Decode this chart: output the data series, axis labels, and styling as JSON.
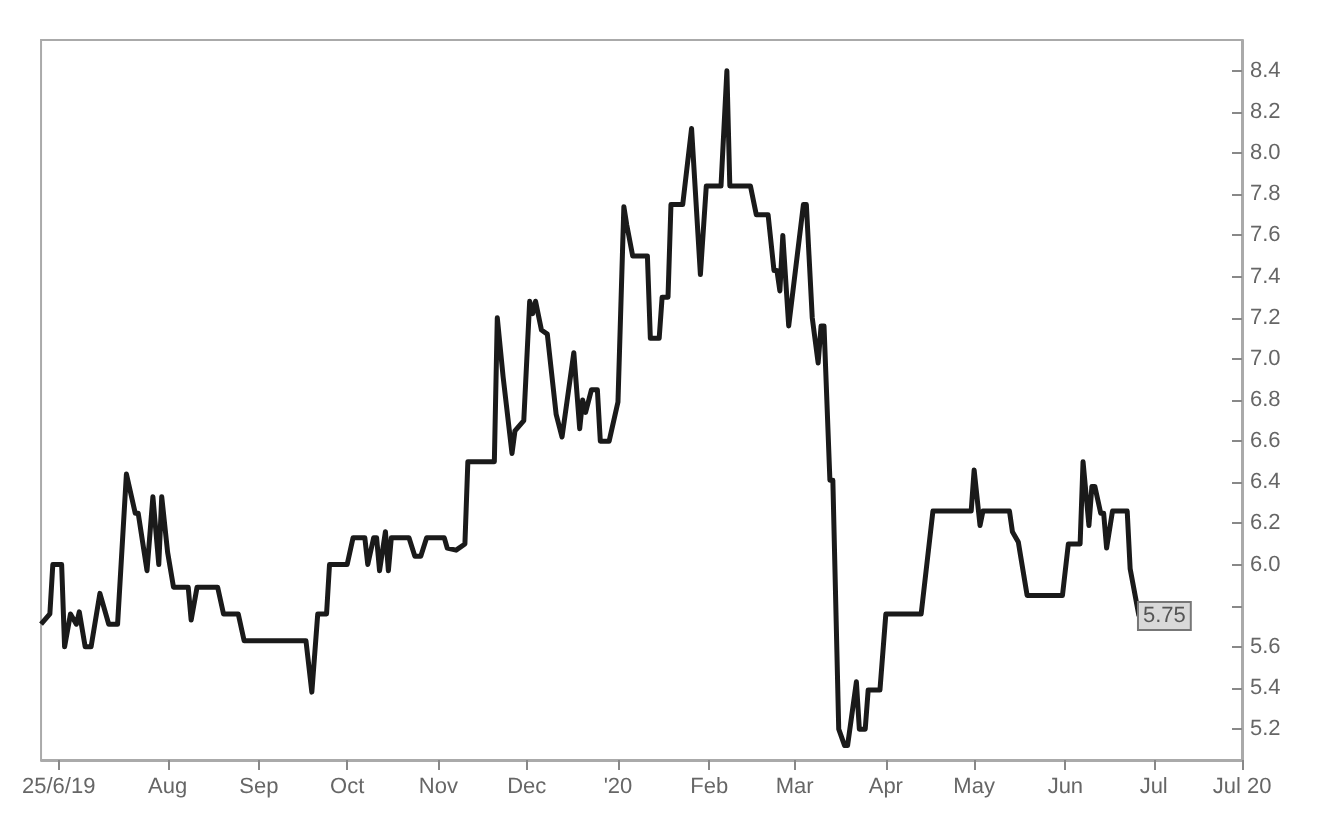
{
  "chart_data": {
    "type": "line",
    "x": [
      "2019-06-19",
      "2019-06-22",
      "2019-06-23",
      "2019-06-26",
      "2019-06-27",
      "2019-06-29",
      "2019-07-01",
      "2019-07-02",
      "2019-07-04",
      "2019-07-06",
      "2019-07-09",
      "2019-07-12",
      "2019-07-15",
      "2019-07-18",
      "2019-07-21",
      "2019-07-22",
      "2019-07-25",
      "2019-07-27",
      "2019-07-29",
      "2019-07-30",
      "2019-08-01",
      "2019-08-03",
      "2019-08-08",
      "2019-08-09",
      "2019-08-11",
      "2019-08-18",
      "2019-08-20",
      "2019-08-25",
      "2019-08-27",
      "2019-09-17",
      "2019-09-19",
      "2019-09-21",
      "2019-09-24",
      "2019-09-25",
      "2019-10-01",
      "2019-10-03",
      "2019-10-07",
      "2019-10-08",
      "2019-10-10",
      "2019-10-11",
      "2019-10-12",
      "2019-10-14",
      "2019-10-15",
      "2019-10-16",
      "2019-10-22",
      "2019-10-24",
      "2019-10-26",
      "2019-10-28",
      "2019-11-03",
      "2019-11-04",
      "2019-11-07",
      "2019-11-10",
      "2019-11-11",
      "2019-11-20",
      "2019-11-21",
      "2019-11-23",
      "2019-11-26",
      "2019-11-27",
      "2019-11-30",
      "2019-12-02",
      "2019-12-03",
      "2019-12-04",
      "2019-12-06",
      "2019-12-08",
      "2019-12-11",
      "2019-12-13",
      "2019-12-17",
      "2019-12-19",
      "2019-12-20",
      "2019-12-21",
      "2019-12-23",
      "2019-12-25",
      "2019-12-26",
      "2019-12-29",
      "2020-01-01",
      "2020-01-03",
      "2020-01-04",
      "2020-01-06",
      "2020-01-11",
      "2020-01-12",
      "2020-01-15",
      "2020-01-16",
      "2020-01-18",
      "2020-01-19",
      "2020-01-23",
      "2020-01-26",
      "2020-01-29",
      "2020-01-31",
      "2020-02-05",
      "2020-02-07",
      "2020-02-08",
      "2020-02-15",
      "2020-02-17",
      "2020-02-21",
      "2020-02-23",
      "2020-02-24",
      "2020-02-25",
      "2020-02-26",
      "2020-02-28",
      "2020-03-04",
      "2020-03-05",
      "2020-03-07",
      "2020-03-09",
      "2020-03-10",
      "2020-03-11",
      "2020-03-13",
      "2020-03-14",
      "2020-03-16",
      "2020-03-18",
      "2020-03-19",
      "2020-03-22",
      "2020-03-23",
      "2020-03-25",
      "2020-03-26",
      "2020-03-30",
      "2020-04-01",
      "2020-04-13",
      "2020-04-17",
      "2020-04-30",
      "2020-05-01",
      "2020-05-03",
      "2020-05-04",
      "2020-05-13",
      "2020-05-14",
      "2020-05-16",
      "2020-05-19",
      "2020-05-31",
      "2020-06-02",
      "2020-06-06",
      "2020-06-07",
      "2020-06-09",
      "2020-06-10",
      "2020-06-11",
      "2020-06-13",
      "2020-06-14",
      "2020-06-15",
      "2020-06-17",
      "2020-06-22",
      "2020-06-23",
      "2020-06-26"
    ],
    "series": [
      {
        "color": "#1a1a1a",
        "values": [
          5.71,
          5.76,
          6.0,
          6.0,
          5.6,
          5.76,
          5.71,
          5.77,
          5.6,
          5.6,
          5.86,
          5.71,
          5.71,
          6.44,
          6.25,
          6.25,
          5.97,
          6.33,
          6.0,
          6.33,
          6.06,
          5.89,
          5.89,
          5.73,
          5.89,
          5.89,
          5.76,
          5.76,
          5.63,
          5.63,
          5.38,
          5.76,
          5.76,
          6.0,
          6.0,
          6.13,
          6.13,
          6.0,
          6.13,
          6.13,
          5.97,
          6.16,
          5.97,
          6.13,
          6.13,
          6.04,
          6.04,
          6.13,
          6.13,
          6.08,
          6.07,
          6.1,
          6.5,
          6.5,
          7.2,
          6.91,
          6.54,
          6.65,
          6.7,
          7.28,
          7.22,
          7.28,
          7.14,
          7.12,
          6.73,
          6.62,
          7.03,
          6.66,
          6.8,
          6.74,
          6.85,
          6.85,
          6.6,
          6.6,
          6.79,
          7.74,
          7.65,
          7.5,
          7.5,
          7.1,
          7.1,
          7.3,
          7.3,
          7.75,
          7.75,
          8.12,
          7.41,
          7.84,
          7.84,
          8.4,
          7.84,
          7.84,
          7.7,
          7.7,
          7.43,
          7.43,
          7.33,
          7.6,
          7.16,
          7.75,
          7.75,
          7.2,
          6.98,
          7.16,
          7.16,
          6.41,
          6.41,
          5.2,
          5.12,
          5.12,
          5.43,
          5.2,
          5.2,
          5.39,
          5.39,
          5.76,
          5.76,
          6.26,
          6.26,
          6.46,
          6.19,
          6.26,
          6.26,
          6.16,
          6.11,
          5.85,
          5.85,
          6.1,
          6.1,
          6.5,
          6.19,
          6.38,
          6.38,
          6.25,
          6.25,
          6.08,
          6.26,
          6.26,
          5.98,
          5.75
        ]
      }
    ],
    "xlim": [
      "2019-06-19",
      "2020-07-31"
    ],
    "xticks": [
      {
        "value": "2019-06-25",
        "label": "25/6/19"
      },
      {
        "value": "2019-08-01",
        "label": "Aug"
      },
      {
        "value": "2019-09-01",
        "label": "Sep"
      },
      {
        "value": "2019-10-01",
        "label": "Oct"
      },
      {
        "value": "2019-11-01",
        "label": "Nov"
      },
      {
        "value": "2019-12-01",
        "label": "Dec"
      },
      {
        "value": "2020-01-01",
        "label": "'20"
      },
      {
        "value": "2020-02-01",
        "label": "Feb"
      },
      {
        "value": "2020-03-01",
        "label": "Mar"
      },
      {
        "value": "2020-04-01",
        "label": "Apr"
      },
      {
        "value": "2020-05-01",
        "label": "May"
      },
      {
        "value": "2020-06-01",
        "label": "Jun"
      },
      {
        "value": "2020-07-01",
        "label": "Jul"
      },
      {
        "value": "2020-07-31",
        "label": "Jul 20"
      }
    ],
    "ylim": [
      5.05,
      8.55
    ],
    "yticks": [
      5.2,
      5.4,
      5.6,
      {
        "value": 5.8,
        "label": null
      },
      "6.0",
      6.2,
      6.4,
      6.6,
      6.8,
      "7.0",
      7.2,
      7.4,
      7.6,
      7.8,
      "8.0",
      8.2,
      8.4
    ],
    "annotations": [
      {
        "text": "5.75",
        "x": "2020-06-26",
        "y": 5.75
      }
    ],
    "grid": false,
    "marker": "none",
    "line_style": "solid"
  }
}
